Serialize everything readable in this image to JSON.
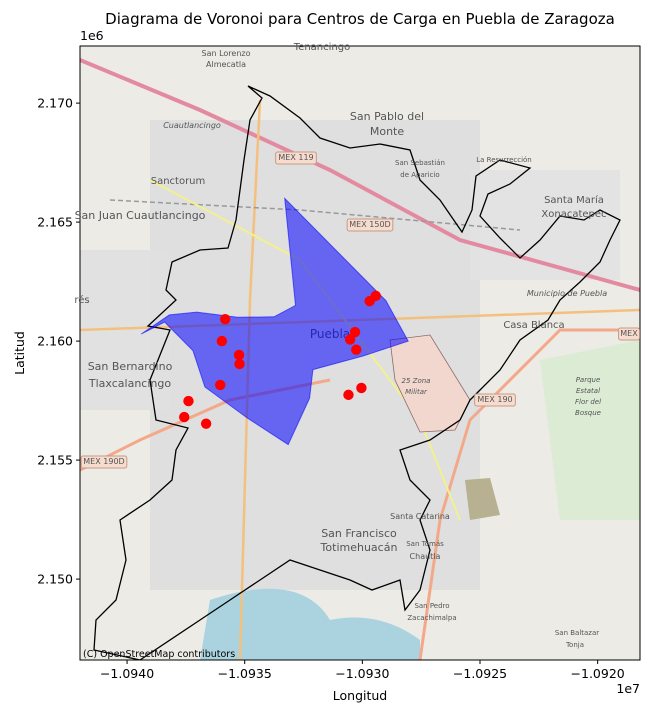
{
  "chart_data": {
    "type": "scatter",
    "title": "Diagrama de Voronoi para Centros de Carga en Puebla de Zaragoza",
    "xlabel": "Longitud",
    "ylabel": "Latitud",
    "x_offset_label": "1e7",
    "y_offset_label": "1e6",
    "xlim": [
      -10942000,
      -10918200
    ],
    "ylim": [
      2146600,
      2172400
    ],
    "xticks": [
      -1.094,
      -1.0935,
      -1.093,
      -1.0925,
      -1.092
    ],
    "xtick_labels": [
      "−1.0940",
      "−1.0935",
      "−1.0930",
      "−1.0925",
      "−1.0920"
    ],
    "yticks": [
      2.15,
      2.155,
      2.16,
      2.165,
      2.17
    ],
    "ytick_labels": [
      "2.150",
      "2.155",
      "2.160",
      "2.165",
      "2.170"
    ],
    "grid": false,
    "basemap_attribution": "(C) OpenStreetMap contributors",
    "series": [
      {
        "kind": "points",
        "color": "#ff0000",
        "points": [
          [
            -10935830,
            2160920
          ],
          [
            -10935970,
            2160000
          ],
          [
            -10935240,
            2159420
          ],
          [
            -10935220,
            2159040
          ],
          [
            -10936040,
            2158160
          ],
          [
            -10937390,
            2157480
          ],
          [
            -10937570,
            2156810
          ],
          [
            -10936640,
            2156530
          ],
          [
            -10930310,
            2160380
          ],
          [
            -10930520,
            2160070
          ],
          [
            -10930260,
            2159640
          ],
          [
            -10929690,
            2161680
          ],
          [
            -10929430,
            2161900
          ],
          [
            -10930040,
            2158030
          ],
          [
            -10930590,
            2157740
          ]
        ]
      },
      {
        "kind": "voronoi-region",
        "color": "#0000ff",
        "polygon": [
          [
            -10933300,
            2166000
          ],
          [
            -10931230,
            2163930
          ],
          [
            -10929000,
            2161700
          ],
          [
            -10928050,
            2160000
          ],
          [
            -10929950,
            2159380
          ],
          [
            -10932100,
            2158800
          ],
          [
            -10932240,
            2157600
          ],
          [
            -10933150,
            2155650
          ],
          [
            -10934870,
            2156750
          ],
          [
            -10936690,
            2158070
          ],
          [
            -10937200,
            2159600
          ],
          [
            -10938400,
            2160800
          ],
          [
            -10939400,
            2160300
          ],
          [
            -10938200,
            2161100
          ],
          [
            -10937040,
            2161220
          ],
          [
            -10935300,
            2161000
          ],
          [
            -10933750,
            2161020
          ],
          [
            -10932840,
            2161500
          ]
        ]
      }
    ]
  },
  "map_labels": [
    {
      "text": "Tenancingo",
      "size": 10
    },
    {
      "text": "San Lorenzo",
      "size": 8
    },
    {
      "text": "Almecatla",
      "size": 8
    },
    {
      "text": "Cuautlancingo",
      "size": 8
    },
    {
      "text": "San Pablo del",
      "size": 11
    },
    {
      "text": "Monte",
      "size": 11
    },
    {
      "text": "MEX 119",
      "size": 8
    },
    {
      "text": "San Sebastián",
      "size": 7
    },
    {
      "text": "de Aparicio",
      "size": 7
    },
    {
      "text": "La Resurrección",
      "size": 7
    },
    {
      "text": "Sanctorum",
      "size": 10
    },
    {
      "text": "Santa María",
      "size": 10
    },
    {
      "text": "Xonacatepec",
      "size": 10
    },
    {
      "text": "San Juan Cuautlancingo",
      "size": 11
    },
    {
      "text": "MEX 150D",
      "size": 8
    },
    {
      "text": "Municipio de Puebla",
      "size": 8
    },
    {
      "text": "rés",
      "size": 10
    },
    {
      "text": "Puebla",
      "size": 12
    },
    {
      "text": "Casa Blanca",
      "size": 10
    },
    {
      "text": "MEX",
      "size": 8
    },
    {
      "text": "San Bernardino",
      "size": 11
    },
    {
      "text": "Tlaxcalancingo",
      "size": 11
    },
    {
      "text": "25 Zona",
      "size": 7
    },
    {
      "text": "Militar",
      "size": 7
    },
    {
      "text": "MEX 190",
      "size": 8
    },
    {
      "text": "Parque",
      "size": 7
    },
    {
      "text": "Estatal",
      "size": 7
    },
    {
      "text": "Flor del",
      "size": 7
    },
    {
      "text": "Bosque",
      "size": 7
    },
    {
      "text": "MEX 190D",
      "size": 8
    },
    {
      "text": "Santa Catarina",
      "size": 8
    },
    {
      "text": "San Francisco",
      "size": 11
    },
    {
      "text": "Totimehuacán",
      "size": 11
    },
    {
      "text": "San Tomás",
      "size": 7
    },
    {
      "text": "Chautla",
      "size": 8
    },
    {
      "text": "San Pedro",
      "size": 7
    },
    {
      "text": "Zacachimalpa",
      "size": 7
    },
    {
      "text": "San Baltazar",
      "size": 7
    },
    {
      "text": "Tonja",
      "size": 7
    }
  ]
}
